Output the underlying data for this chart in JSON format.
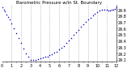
{
  "title": "Barometric Pressure w/in St. Boundary",
  "dot_color": "#0000cc",
  "background_color": "#ffffff",
  "grid_color": "#999999",
  "ylim": [
    29.07,
    29.97
  ],
  "xlim": [
    0,
    1440
  ],
  "yticks": [
    29.1,
    29.2,
    29.3,
    29.4,
    29.5,
    29.6,
    29.7,
    29.8,
    29.9
  ],
  "xtick_positions": [
    0,
    60,
    120,
    180,
    240,
    300,
    360,
    420,
    480,
    540,
    600,
    660,
    720,
    780,
    840,
    900,
    960,
    1020,
    1080,
    1140,
    1200,
    1260,
    1320,
    1380,
    1440
  ],
  "xtick_labels": [
    "0",
    "",
    "1",
    "",
    "2",
    "",
    "3",
    "",
    "4",
    "",
    "5",
    "",
    "6",
    "",
    "7",
    "",
    "8",
    "",
    "9",
    "",
    "10",
    "",
    "11",
    "",
    "12"
  ],
  "vline_positions": [
    120,
    240,
    360,
    480,
    600,
    720,
    840,
    960,
    1080,
    1200,
    1320
  ],
  "data_x": [
    0,
    20,
    40,
    60,
    80,
    100,
    120,
    150,
    180,
    210,
    240,
    270,
    300,
    330,
    360,
    390,
    420,
    450,
    480,
    510,
    540,
    570,
    600,
    630,
    660,
    690,
    720,
    750,
    780,
    810,
    840,
    870,
    900,
    930,
    960,
    990,
    1020,
    1050,
    1080,
    1110,
    1140,
    1170,
    1200,
    1230,
    1260,
    1290,
    1320,
    1340,
    1360,
    1380,
    1400,
    1420,
    1440
  ],
  "data_y": [
    29.93,
    29.9,
    29.87,
    29.82,
    29.78,
    29.74,
    29.68,
    29.6,
    29.52,
    29.44,
    29.36,
    29.28,
    29.2,
    29.14,
    29.1,
    29.09,
    29.09,
    29.11,
    29.12,
    29.13,
    29.14,
    29.15,
    29.17,
    29.19,
    29.21,
    29.23,
    29.26,
    29.29,
    29.32,
    29.36,
    29.4,
    29.44,
    29.49,
    29.53,
    29.57,
    29.62,
    29.66,
    29.7,
    29.74,
    29.77,
    29.8,
    29.83,
    29.86,
    29.88,
    29.89,
    29.9,
    29.89,
    29.88,
    29.88,
    29.89,
    29.9,
    29.91,
    29.93
  ],
  "marker_size": 1.2,
  "tick_fontsize": 3.5,
  "title_fontsize": 4.0
}
